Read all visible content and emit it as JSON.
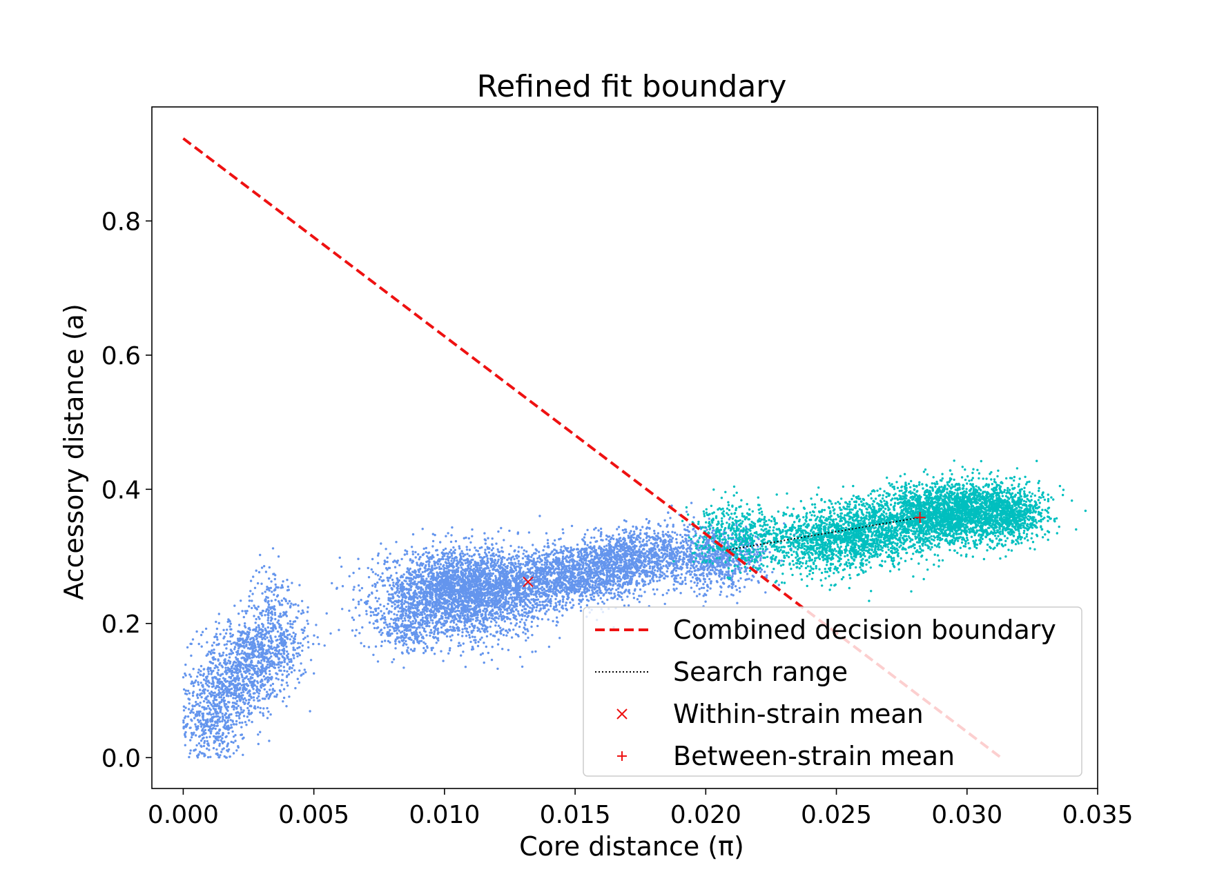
{
  "chart_data": {
    "type": "scatter",
    "title": "Refined fit boundary",
    "xlabel": "Core distance (π)",
    "ylabel": "Accessory distance (a)",
    "xlim": [
      -0.0012,
      0.035
    ],
    "ylim": [
      -0.046,
      0.97
    ],
    "x_ticks": [
      0.0,
      0.005,
      0.01,
      0.015,
      0.02,
      0.025,
      0.03,
      0.035
    ],
    "x_tick_labels": [
      "0.000",
      "0.005",
      "0.010",
      "0.015",
      "0.020",
      "0.025",
      "0.030",
      "0.035"
    ],
    "y_ticks": [
      0.0,
      0.2,
      0.4,
      0.6,
      0.8
    ],
    "y_tick_labels": [
      "0.0",
      "0.2",
      "0.4",
      "0.6",
      "0.8"
    ],
    "grid": false,
    "legend_position": "lower right",
    "colors": {
      "within": "#6495ed",
      "between": "#00bfbf",
      "boundary": "#ee1111",
      "search": "#000000",
      "marker": "#ee1111"
    },
    "scatter_clusters": [
      {
        "series": "within",
        "cx": 0.0012,
        "cy": 0.06,
        "sx": 0.0006,
        "sy": 0.035,
        "slope": 0,
        "n": 500
      },
      {
        "series": "within",
        "cx": 0.0022,
        "cy": 0.13,
        "sx": 0.0008,
        "sy": 0.035,
        "slope": 0,
        "n": 700
      },
      {
        "series": "within",
        "cx": 0.0034,
        "cy": 0.17,
        "sx": 0.0007,
        "sy": 0.035,
        "slope": 0,
        "n": 500
      },
      {
        "series": "within",
        "cx": 0.0034,
        "cy": 0.24,
        "sx": 0.0004,
        "sy": 0.025,
        "slope": 0,
        "n": 90
      },
      {
        "series": "within",
        "cx": 0.0105,
        "cy": 0.245,
        "sx": 0.0015,
        "sy": 0.032,
        "slope": 0,
        "n": 2800
      },
      {
        "series": "within",
        "cx": 0.0085,
        "cy": 0.19,
        "sx": 0.0006,
        "sy": 0.02,
        "slope": 0,
        "n": 220
      },
      {
        "series": "within",
        "cx": 0.0145,
        "cy": 0.27,
        "sx": 0.002,
        "sy": 0.025,
        "slope": 5,
        "n": 2000
      },
      {
        "series": "within",
        "cx": 0.0175,
        "cy": 0.3,
        "sx": 0.0013,
        "sy": 0.022,
        "slope": 5,
        "n": 900
      },
      {
        "series": "within",
        "cx": 0.0205,
        "cy": 0.295,
        "sx": 0.0009,
        "sy": 0.022,
        "slope": 0,
        "n": 700
      },
      {
        "series": "between",
        "cx": 0.0211,
        "cy": 0.335,
        "sx": 0.0008,
        "sy": 0.022,
        "slope": 0,
        "n": 400
      },
      {
        "series": "between",
        "cx": 0.0255,
        "cy": 0.33,
        "sx": 0.0018,
        "sy": 0.025,
        "slope": 4,
        "n": 2000
      },
      {
        "series": "between",
        "cx": 0.0295,
        "cy": 0.365,
        "sx": 0.0015,
        "sy": 0.023,
        "slope": 2,
        "n": 2600
      },
      {
        "series": "between",
        "cx": 0.0318,
        "cy": 0.36,
        "sx": 0.0006,
        "sy": 0.018,
        "slope": 0,
        "n": 500
      }
    ],
    "boundary_line": {
      "x": [
        0.0,
        0.0313
      ],
      "y": [
        0.923,
        0.0
      ]
    },
    "search_range": {
      "x": [
        0.0209,
        0.0282
      ],
      "y": [
        0.31,
        0.358
      ]
    },
    "within_mean": {
      "x": 0.0132,
      "y": 0.262
    },
    "between_mean": {
      "x": 0.0282,
      "y": 0.358
    },
    "legend": [
      {
        "key": "boundary",
        "label": "Combined decision boundary"
      },
      {
        "key": "search",
        "label": "Search range"
      },
      {
        "key": "within",
        "label": "Within-strain mean"
      },
      {
        "key": "between",
        "label": "Between-strain mean"
      }
    ]
  }
}
